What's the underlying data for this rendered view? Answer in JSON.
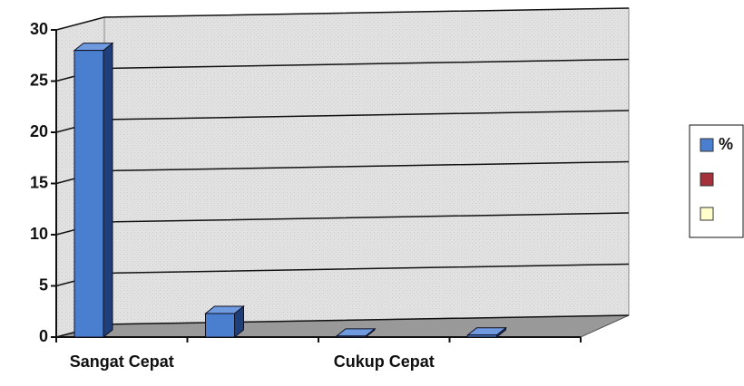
{
  "chart_data": {
    "type": "bar3d",
    "categories": [
      "Sangat Cepat",
      null,
      "Cukup Cepat",
      null
    ],
    "series": [
      {
        "name": "%",
        "color": "#4a7fd0",
        "values": [
          28,
          2.3,
          0.1,
          0.2
        ]
      },
      {
        "color": "#a3303a"
      },
      {
        "color": "#ffffcc"
      }
    ],
    "ylim": [
      0,
      30
    ],
    "yticks": [
      0,
      5,
      10,
      15,
      20,
      25,
      30
    ],
    "grid": true
  }
}
